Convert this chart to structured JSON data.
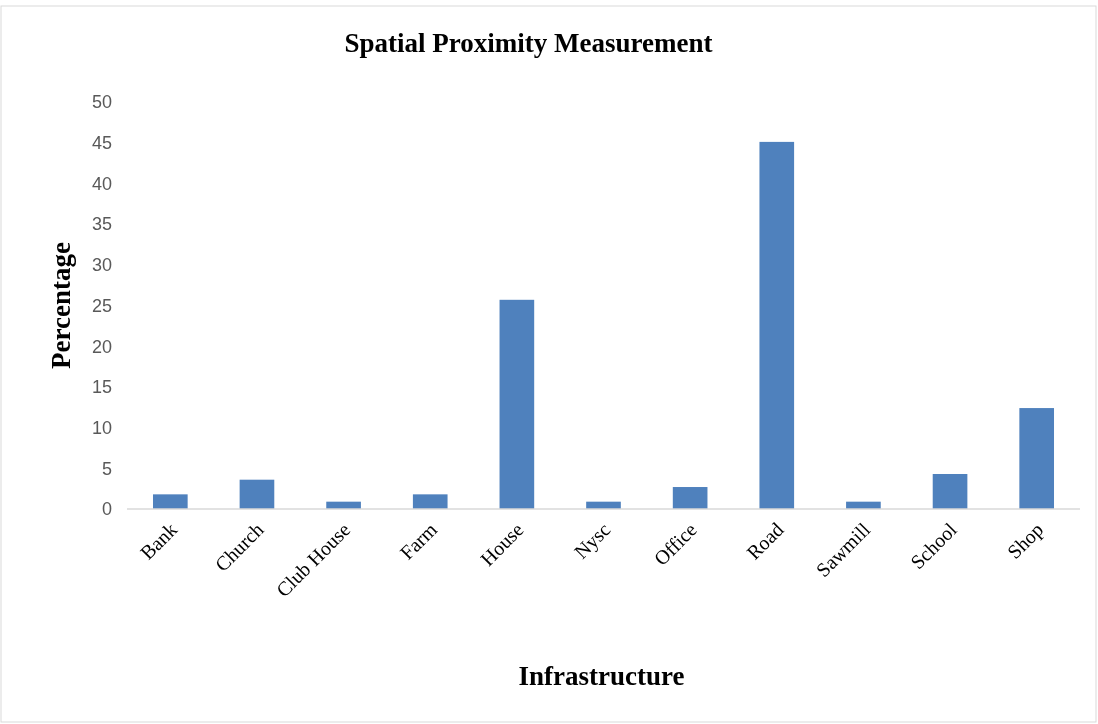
{
  "chart_data": {
    "type": "bar",
    "title": "Spatial Proximity Measurement",
    "xlabel": "Infrastructure",
    "ylabel": "Percentage",
    "categories": [
      "Bank",
      "Church",
      "Club House",
      "Farm",
      "House",
      "Nysc",
      "Office",
      "Road",
      "Sawmill",
      "School",
      "Shop"
    ],
    "values": [
      1.8,
      3.6,
      0.9,
      1.8,
      25.7,
      0.9,
      2.7,
      45.1,
      0.9,
      4.3,
      12.4
    ],
    "color": "#4f81bd",
    "ylim": [
      0,
      50
    ],
    "yticks": [
      0,
      5,
      10,
      15,
      20,
      25,
      30,
      35,
      40,
      45,
      50
    ],
    "grid": false
  }
}
